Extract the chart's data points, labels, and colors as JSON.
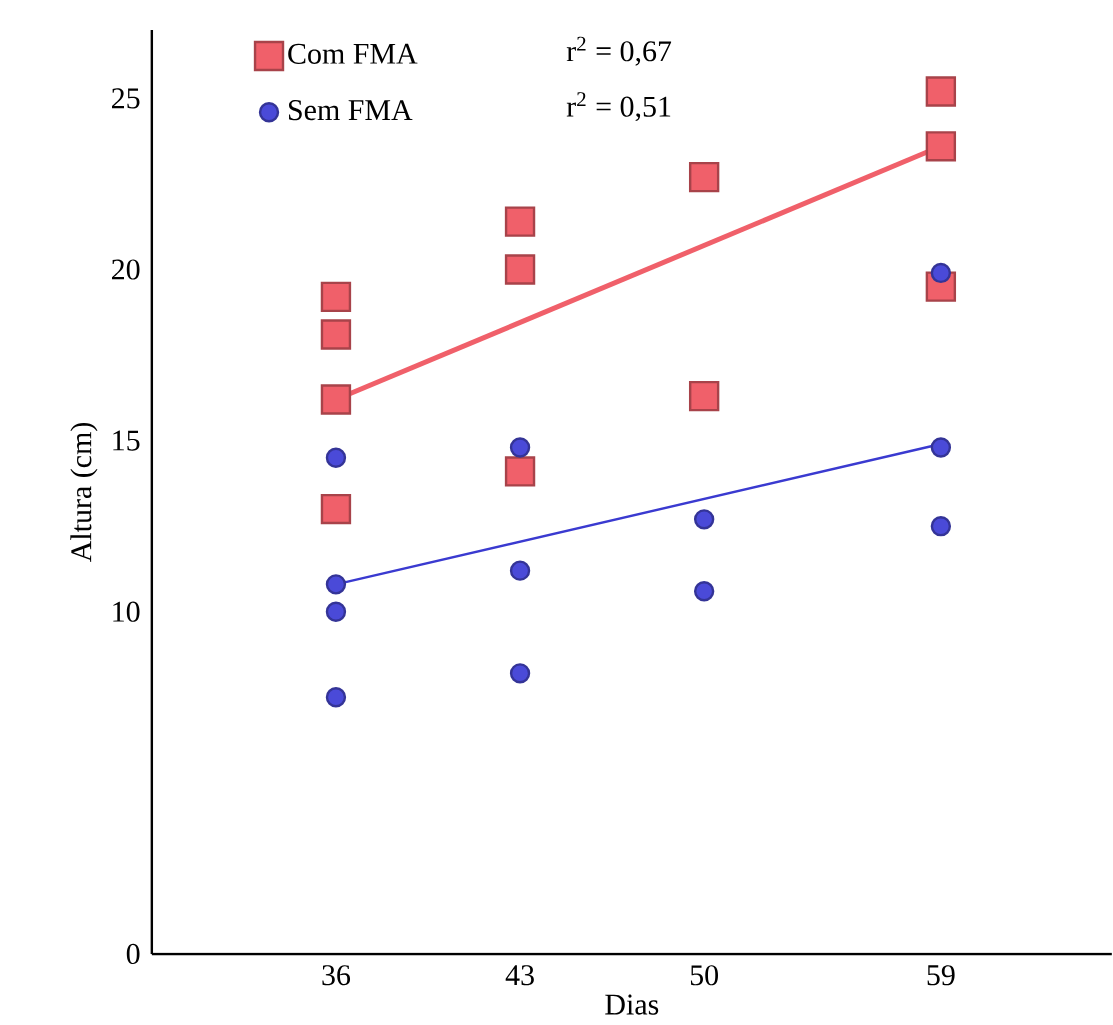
{
  "chart_data": {
    "type": "scatter",
    "xlabel": "Dias",
    "ylabel": "Altura (cm)",
    "xlim": [
      29,
      65.5
    ],
    "ylim": [
      0,
      27
    ],
    "xticks": [
      36,
      43,
      50,
      59
    ],
    "yticks": [
      0,
      10,
      15,
      20,
      25
    ],
    "legend": "top left",
    "annotations": [
      "r$^{2}$ = 0,67",
      "r$^{2}$ = 0,51"
    ],
    "series": [
      {
        "name": "Com FMA",
        "marker": "square",
        "color": "#f0606a",
        "x": [
          36,
          36,
          36,
          36,
          43,
          43,
          43,
          50,
          50,
          59,
          59,
          59
        ],
        "values": [
          19.2,
          18.1,
          16.2,
          13.0,
          21.4,
          20.0,
          14.1,
          22.7,
          16.3,
          25.2,
          23.6,
          19.5
        ]
      },
      {
        "name": "Sem FMA",
        "marker": "circle",
        "color": "#4a4ad8",
        "x": [
          36,
          36,
          36,
          36,
          43,
          43,
          43,
          50,
          50,
          59,
          59,
          59
        ],
        "values": [
          14.5,
          10.8,
          10.0,
          7.5,
          14.8,
          11.2,
          8.2,
          12.7,
          10.6,
          19.9,
          14.8,
          12.5
        ]
      },
      {
        "type": "line",
        "marker": "none",
        "color": "#f0606a",
        "x": [
          36,
          59
        ],
        "values": [
          16.2,
          23.6
        ]
      },
      {
        "type": "line",
        "marker": "none",
        "color": "#3a3ad0",
        "x": [
          36,
          59
        ],
        "values": [
          10.8,
          14.9
        ]
      }
    ]
  }
}
